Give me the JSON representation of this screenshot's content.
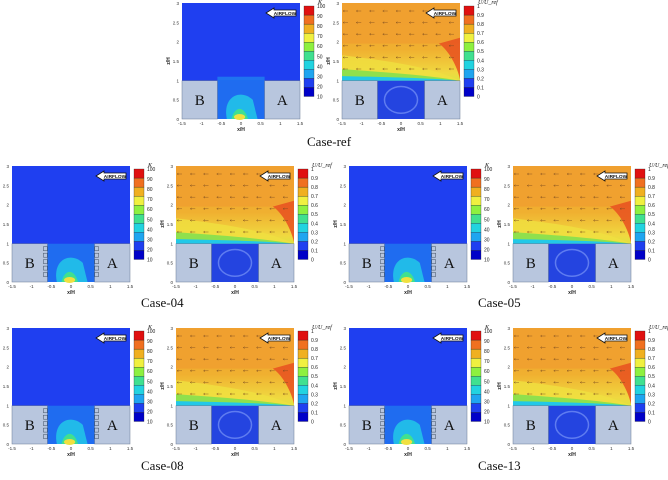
{
  "figure": {
    "colors": {
      "blue": "#1f3ff0",
      "building": "#b8c6de",
      "cbar": [
        "#0000c8",
        "#1f3ff0",
        "#1fa5f0",
        "#22d3e0",
        "#40e090",
        "#8ef040",
        "#f0f040",
        "#f0b020",
        "#f07020",
        "#e01010"
      ]
    },
    "panel_labels": {
      "airflow": "AIRFLOW",
      "building_b": "B",
      "building_a": "A"
    },
    "axes": {
      "ylabel": "z/H",
      "xlabel": "x/H",
      "y_ticks": [
        "0",
        "0.5",
        "1",
        "1.5",
        "2",
        "2.5",
        "3"
      ],
      "x_ticks": [
        "-1.5",
        "-1",
        "-0.5",
        "0",
        "0.5",
        "1",
        "1.5"
      ]
    },
    "colorbars": {
      "k": {
        "title": "K",
        "ticks": [
          "100",
          "90",
          "80",
          "70",
          "60",
          "50",
          "40",
          "30",
          "20",
          "10"
        ]
      },
      "u": {
        "title": "U/U_ref",
        "ticks": [
          "1",
          "0.9",
          "0.8",
          "0.7",
          "0.6",
          "0.5",
          "0.4",
          "0.3",
          "0.2",
          "0.1",
          "0"
        ]
      }
    },
    "cases": [
      {
        "caption": "Case-ref"
      },
      {
        "caption": "Case-04"
      },
      {
        "caption": "Case-05"
      },
      {
        "caption": "Case-08"
      },
      {
        "caption": "Case-13"
      }
    ]
  }
}
